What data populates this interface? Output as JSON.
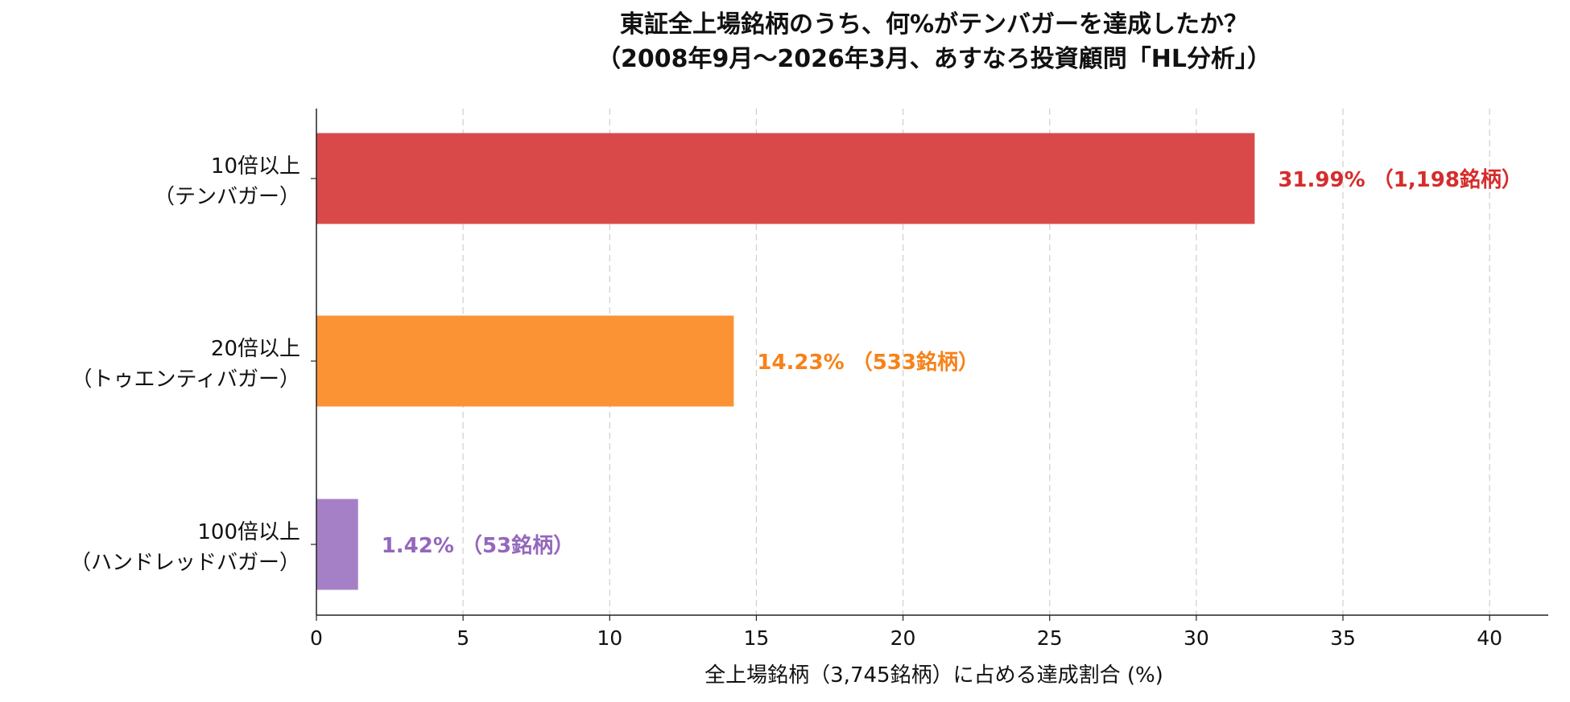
{
  "chart_data": {
    "type": "bar",
    "orientation": "horizontal",
    "title": "東証全上場銘柄のうち、何%がテンバガーを達成したか？",
    "subtitle": "（2008年9月〜2026年3月、あすなろ投資顧問「HL分析」）",
    "xlabel": "全上場銘柄（3,745銘柄）に占める達成割合 (%)",
    "ylabel": "",
    "xlim": [
      0,
      42
    ],
    "xticks": [
      "0",
      "5",
      "10",
      "15",
      "20",
      "25",
      "30",
      "35",
      "40"
    ],
    "grid": "vertical dashed",
    "categories": [
      {
        "line1": "10倍以上",
        "line2": "（テンバガー）"
      },
      {
        "line1": "20倍以上",
        "line2": "（トゥエンティバガー）"
      },
      {
        "line1": "100倍以上",
        "line2": "（ハンドレッドバガー）"
      }
    ],
    "values": [
      31.99,
      14.23,
      1.42
    ],
    "counts": [
      1198,
      533,
      53
    ],
    "data_labels": [
      "31.99% （1,198銘柄）",
      "14.23% （533銘柄）",
      "1.42% （53銘柄）"
    ],
    "bar_colors": [
      "#da494a",
      "#fb9334",
      "#a680c6"
    ],
    "label_colors": [
      "#d62c2c",
      "#f6821a",
      "#9467bd"
    ]
  }
}
